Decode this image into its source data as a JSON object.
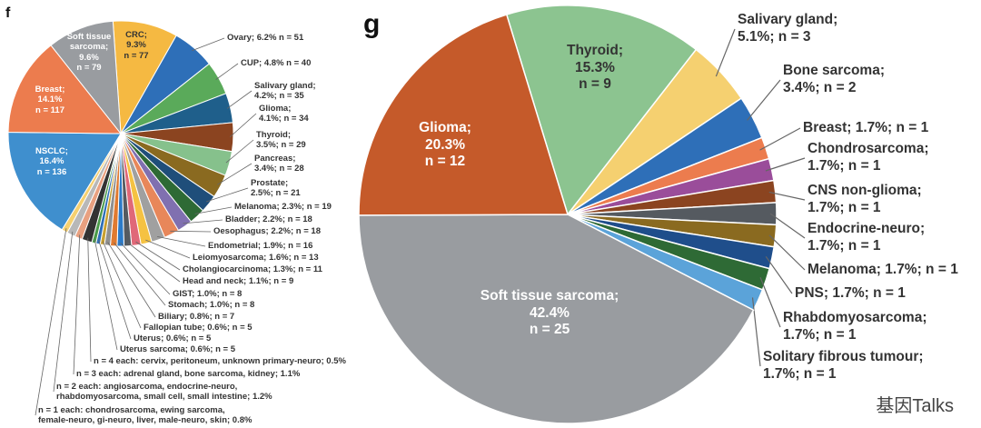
{
  "watermark": "基因Talks",
  "chart_data": [
    {
      "type": "pie",
      "panel": "f",
      "slices": [
        {
          "name": "CRC",
          "percent": 9.3,
          "n": 77,
          "color": "#f5b942",
          "lines": [
            "CRC;",
            "9.3%",
            "n = 77"
          ]
        },
        {
          "name": "Ovary",
          "percent": 6.2,
          "n": 51,
          "color": "#2e6fb8",
          "lines": [
            "Ovary; 6.2% n = 51"
          ]
        },
        {
          "name": "CUP",
          "percent": 4.8,
          "n": 40,
          "color": "#5aaa5a",
          "lines": [
            "CUP; 4.8% n = 40"
          ]
        },
        {
          "name": "Salivary gland",
          "percent": 4.2,
          "n": 35,
          "color": "#1f5f8b",
          "lines": [
            "Salivary gland;",
            "4.2%; n = 35"
          ]
        },
        {
          "name": "Glioma",
          "percent": 4.1,
          "n": 34,
          "color": "#8b4420",
          "lines": [
            "Glioma;",
            "4.1%; n = 34"
          ]
        },
        {
          "name": "Thyroid",
          "percent": 3.5,
          "n": 29,
          "color": "#86c18c",
          "lines": [
            "Thyroid;",
            "3.5%; n = 29"
          ]
        },
        {
          "name": "Pancreas",
          "percent": 3.4,
          "n": 28,
          "color": "#8a6a20",
          "lines": [
            "Pancreas;",
            "3.4%; n = 28"
          ]
        },
        {
          "name": "Prostate",
          "percent": 2.5,
          "n": 21,
          "color": "#1f4e7a",
          "lines": [
            "Prostate;",
            "2.5%; n = 21"
          ]
        },
        {
          "name": "Melanoma",
          "percent": 2.3,
          "n": 19,
          "color": "#2e6a35",
          "lines": [
            "Melanoma; 2.3%; n = 19"
          ]
        },
        {
          "name": "Bladder",
          "percent": 2.2,
          "n": 18,
          "color": "#8070b0",
          "lines": [
            "Bladder; 2.2%; n = 18"
          ]
        },
        {
          "name": "Oesophagus",
          "percent": 2.2,
          "n": 18,
          "color": "#e8875a",
          "lines": [
            "Oesophagus; 2.2%; n = 18"
          ]
        },
        {
          "name": "Endometrial",
          "percent": 1.9,
          "n": 16,
          "color": "#a0a0a0",
          "lines": [
            "Endometrial; 1.9%; n = 16"
          ]
        },
        {
          "name": "Leiomyosarcoma",
          "percent": 1.6,
          "n": 13,
          "color": "#f5c242",
          "lines": [
            "Leiomyosarcoma; 1.6%; n = 13"
          ]
        },
        {
          "name": "Cholangiocarcinoma",
          "percent": 1.3,
          "n": 11,
          "color": "#e06878",
          "lines": [
            "Cholangiocarcinoma; 1.3%; n = 11"
          ]
        },
        {
          "name": "Head and neck",
          "percent": 1.1,
          "n": 9,
          "color": "#555a60",
          "lines": [
            "Head and neck; 1.1%; n = 9"
          ]
        },
        {
          "name": "GIST",
          "percent": 1.0,
          "n": 8,
          "color": "#2b7ac8",
          "lines": [
            "GIST; 1.0%; n = 8"
          ]
        },
        {
          "name": "Stomach",
          "percent": 1.0,
          "n": 8,
          "color": "#e07a30",
          "lines": [
            "Stomach; 1.0%; n = 8"
          ]
        },
        {
          "name": "Biliary",
          "percent": 0.8,
          "n": 7,
          "color": "#909090",
          "lines": [
            "Biliary; 0.8%; n = 7"
          ]
        },
        {
          "name": "Fallopian tube",
          "percent": 0.6,
          "n": 5,
          "color": "#c8a030",
          "lines": [
            "Fallopian tube; 0.6%; n = 5"
          ]
        },
        {
          "name": "Uterus",
          "percent": 0.6,
          "n": 5,
          "color": "#2e6fb8",
          "lines": [
            "Uterus; 0.6%; n = 5"
          ]
        },
        {
          "name": "Uterus sarcoma",
          "percent": 0.6,
          "n": 5,
          "color": "#4a9a4a",
          "lines": [
            "Uterus sarcoma; 0.6%; n = 5"
          ]
        },
        {
          "name": "n = 4 each",
          "percent": 1.5,
          "n": 12,
          "color": "#333333",
          "lines": [
            "n = 4 each: cervix, peritoneum, unknown primary-neuro; 0.5%"
          ]
        },
        {
          "name": "n = 3 each",
          "percent": 1.1,
          "n": 9,
          "color": "#e8a080",
          "lines": [
            "n = 3 each: adrenal gland, bone sarcoma, kidney; 1.1%"
          ]
        },
        {
          "name": "n = 2 each",
          "percent": 1.2,
          "n": 10,
          "color": "#b8b8b8",
          "lines": [
            "n = 2 each: angiosarcoma, endocrine-neuro,",
            "rhabdomyosarcoma, small cell, small intestine; 1.2%"
          ]
        },
        {
          "name": "n = 1 each",
          "percent": 0.8,
          "n": 7,
          "color": "#f5d070",
          "lines": [
            "n = 1 each: chondrosarcoma, ewing sarcoma,",
            "female-neuro, gi-neuro, liver, male-neuro, skin; 0.8%"
          ]
        },
        {
          "name": "NSCLC",
          "percent": 16.4,
          "n": 136,
          "color": "#3f8fce",
          "lines": [
            "NSCLC;",
            "16.4%",
            "n = 136"
          ]
        },
        {
          "name": "Breast",
          "percent": 14.1,
          "n": 117,
          "color": "#ec7c4e",
          "lines": [
            "Breast;",
            "14.1%",
            "n = 117"
          ]
        },
        {
          "name": "Soft tissue sarcoma",
          "percent": 9.6,
          "n": 79,
          "color": "#999ca0",
          "lines": [
            "Soft tissue",
            "sarcoma;",
            "9.6%",
            "n = 79"
          ]
        }
      ]
    },
    {
      "type": "pie",
      "panel": "g",
      "slices": [
        {
          "name": "Thyroid",
          "percent": 15.3,
          "n": 9,
          "color": "#8cc490",
          "lines": [
            "Thyroid;",
            "15.3%",
            "n = 9"
          ]
        },
        {
          "name": "Salivary gland",
          "percent": 5.1,
          "n": 3,
          "color": "#f5d070",
          "lines": [
            "Salivary gland;",
            "5.1%; n = 3"
          ]
        },
        {
          "name": "Bone sarcoma",
          "percent": 3.4,
          "n": 2,
          "color": "#2e6fb8",
          "lines": [
            "Bone sarcoma;",
            "3.4%; n = 2"
          ]
        },
        {
          "name": "Breast",
          "percent": 1.7,
          "n": 1,
          "color": "#ec7c4e",
          "lines": [
            "Breast; 1.7%; n = 1"
          ]
        },
        {
          "name": "Chondrosarcoma",
          "percent": 1.7,
          "n": 1,
          "color": "#9a4d9a",
          "lines": [
            "Chondrosarcoma;",
            "1.7%; n = 1"
          ]
        },
        {
          "name": "CNS non-glioma",
          "percent": 1.7,
          "n": 1,
          "color": "#8b4420",
          "lines": [
            "CNS non-glioma;",
            "1.7%; n = 1"
          ]
        },
        {
          "name": "Endocrine-neuro",
          "percent": 1.7,
          "n": 1,
          "color": "#555a60",
          "lines": [
            "Endocrine-neuro;",
            "1.7%; n = 1"
          ]
        },
        {
          "name": "Melanoma",
          "percent": 1.7,
          "n": 1,
          "color": "#8a6a20",
          "lines": [
            "Melanoma; 1.7%; n = 1"
          ]
        },
        {
          "name": "PNS",
          "percent": 1.7,
          "n": 1,
          "color": "#1f4e8b",
          "lines": [
            "PNS; 1.7%; n = 1"
          ]
        },
        {
          "name": "Rhabdomyosarcoma",
          "percent": 1.7,
          "n": 1,
          "color": "#2e6a35",
          "lines": [
            "Rhabdomyosarcoma;",
            "1.7%; n = 1"
          ]
        },
        {
          "name": "Solitary fibrous tumour",
          "percent": 1.7,
          "n": 1,
          "color": "#5ba3d9",
          "lines": [
            "Solitary fibrous tumour;",
            "1.7%; n = 1"
          ]
        },
        {
          "name": "Soft tissue sarcoma",
          "percent": 42.4,
          "n": 25,
          "color": "#999ca0",
          "lines": [
            "Soft tissue sarcoma;",
            "42.4%",
            "n = 25"
          ]
        },
        {
          "name": "Glioma",
          "percent": 20.3,
          "n": 12,
          "color": "#c55a2a",
          "lines": [
            "Glioma;",
            "20.3%",
            "n = 12"
          ]
        }
      ]
    }
  ]
}
